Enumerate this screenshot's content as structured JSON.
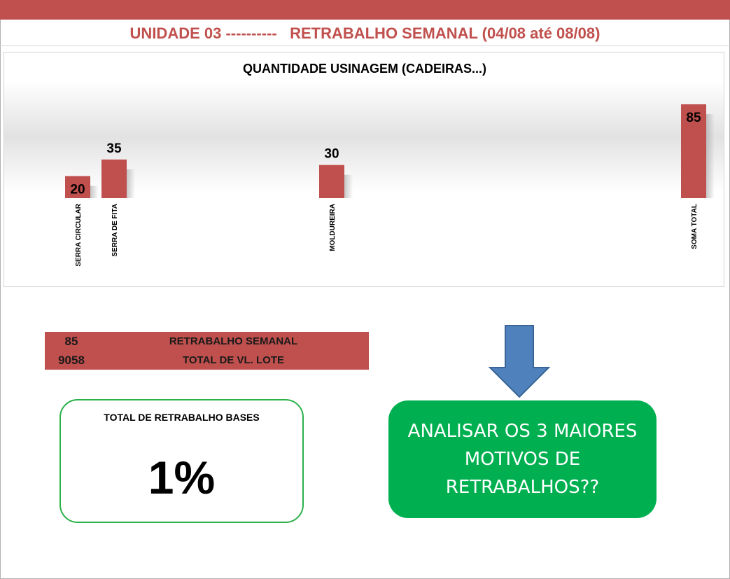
{
  "header": {
    "title": "UNIDADE 03 ----------   RETRABALHO SEMANAL (04/08 até 08/08)"
  },
  "chart_data": {
    "type": "bar",
    "title": "QUANTIDADE USINAGEM (CADEIRAS...)",
    "categories": [
      "SERRA CIRCULAR",
      "SERRA DE FITA",
      "MOLDUREIRA",
      "SOMA TOTAL"
    ],
    "values": [
      20,
      35,
      30,
      85
    ],
    "data_labels": [
      "20",
      "35",
      "30",
      "85"
    ],
    "xlabel": "",
    "ylabel": "",
    "grid": false,
    "legend": "none",
    "colors": {
      "bar": "#c0504d"
    }
  },
  "summary": {
    "rows": [
      {
        "value": "85",
        "label": "RETRABALHO SEMANAL"
      },
      {
        "value": "9058",
        "label": "TOTAL DE VL. LOTE"
      }
    ]
  },
  "kpi": {
    "label": "TOTAL DE RETRABALHO BASES",
    "value": "1%"
  },
  "callout": {
    "text": "ANALISAR OS 3 MAIORES MOTIVOS DE RETRABALHOS??"
  },
  "colors": {
    "accent": "#c0504d",
    "callout": "#00b050",
    "kpi_border": "#2bb04a",
    "arrow": "#4f81bd"
  },
  "icons": {
    "arrow": "arrow-down-icon"
  }
}
